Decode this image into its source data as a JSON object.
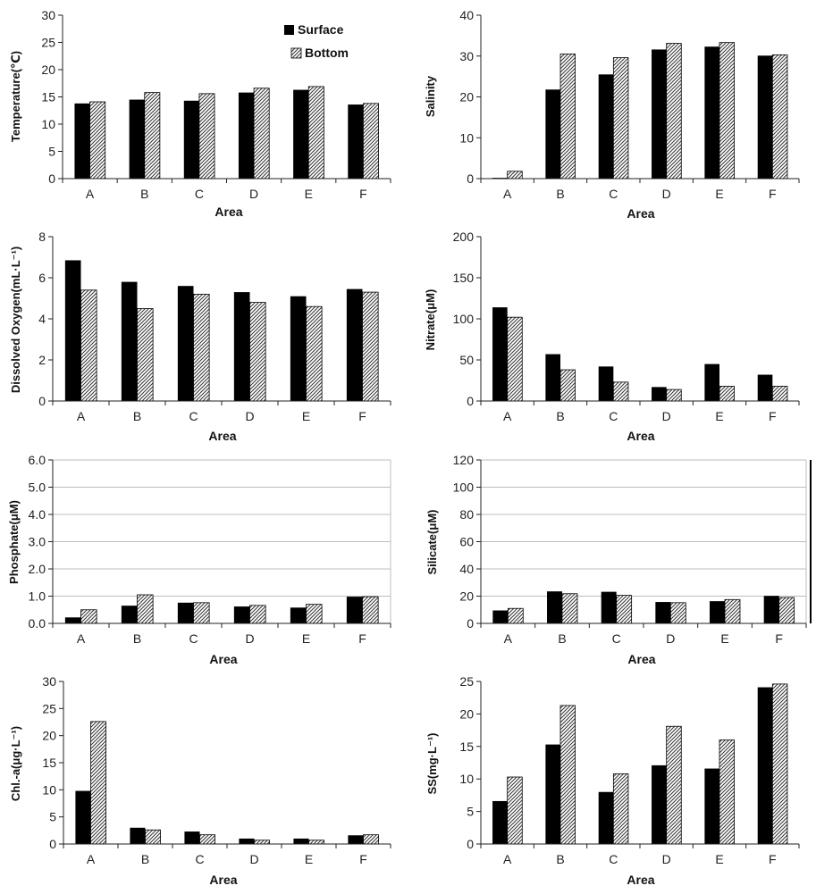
{
  "chart_data": [
    {
      "type": "bar",
      "categories": [
        "A",
        "B",
        "C",
        "D",
        "E",
        "F"
      ],
      "series": [
        {
          "name": "Surface",
          "values": [
            13.8,
            14.5,
            14.3,
            15.8,
            16.3,
            13.6
          ]
        },
        {
          "name": "Bottom",
          "values": [
            14.1,
            15.8,
            15.6,
            16.6,
            16.9,
            13.8
          ]
        }
      ],
      "xlabel": "Area",
      "ylabel": "Temperature(℃)",
      "ylim": [
        0,
        30
      ],
      "yticks": [
        "0",
        "5",
        "10",
        "15",
        "20",
        "25",
        "30"
      ],
      "grid": false,
      "legend": "top-right"
    },
    {
      "type": "bar",
      "categories": [
        "A",
        "B",
        "C",
        "D",
        "E",
        "F"
      ],
      "series": [
        {
          "name": "Surface",
          "values": [
            0.2,
            21.8,
            25.5,
            31.6,
            32.3,
            30.1
          ]
        },
        {
          "name": "Bottom",
          "values": [
            1.8,
            30.5,
            29.6,
            33.1,
            33.3,
            30.3
          ]
        }
      ],
      "xlabel": "Area",
      "ylabel": "Salinity",
      "ylim": [
        0,
        40
      ],
      "yticks": [
        "0",
        "10",
        "20",
        "30",
        "40"
      ],
      "grid": false
    },
    {
      "type": "bar",
      "categories": [
        "A",
        "B",
        "C",
        "D",
        "E",
        "F"
      ],
      "series": [
        {
          "name": "Surface",
          "values": [
            6.85,
            5.8,
            5.6,
            5.3,
            5.1,
            5.45
          ]
        },
        {
          "name": "Bottom",
          "values": [
            5.4,
            4.5,
            5.2,
            4.8,
            4.6,
            5.3
          ]
        }
      ],
      "xlabel": "Area",
      "ylabel": "Dissolved Oxygen(mL·L⁻¹)",
      "ylim": [
        0,
        8
      ],
      "yticks": [
        "0",
        "2",
        "4",
        "6",
        "8"
      ],
      "grid": false
    },
    {
      "type": "bar",
      "categories": [
        "A",
        "B",
        "C",
        "D",
        "E",
        "F"
      ],
      "series": [
        {
          "name": "Surface",
          "values": [
            114,
            57,
            42,
            17,
            45,
            32
          ]
        },
        {
          "name": "Bottom",
          "values": [
            102,
            38,
            23,
            14,
            18,
            18
          ]
        }
      ],
      "xlabel": "Area",
      "ylabel": "Nitrate(μM)",
      "ylim": [
        0,
        200
      ],
      "yticks": [
        "0",
        "50",
        "100",
        "150",
        "200"
      ],
      "grid": false
    },
    {
      "type": "bar",
      "categories": [
        "A",
        "B",
        "C",
        "D",
        "E",
        "F"
      ],
      "series": [
        {
          "name": "Surface",
          "values": [
            0.22,
            0.65,
            0.76,
            0.62,
            0.58,
            0.98
          ]
        },
        {
          "name": "Bottom",
          "values": [
            0.5,
            1.05,
            0.76,
            0.66,
            0.7,
            0.98
          ]
        }
      ],
      "xlabel": "Area",
      "ylabel": "Phosphate(μM)",
      "ylim": [
        0,
        6
      ],
      "yticks": [
        "0.0",
        "1.0",
        "2.0",
        "3.0",
        "4.0",
        "5.0",
        "6.0"
      ],
      "grid": true
    },
    {
      "type": "bar",
      "categories": [
        "A",
        "B",
        "C",
        "D",
        "E",
        "F"
      ],
      "series": [
        {
          "name": "Surface",
          "values": [
            9.5,
            23.5,
            23.2,
            15.7,
            16.3,
            20.2
          ]
        },
        {
          "name": "Bottom",
          "values": [
            11.0,
            21.8,
            20.6,
            15.2,
            17.5,
            19.0
          ]
        }
      ],
      "xlabel": "Area",
      "ylabel": "Silicate(μM)",
      "ylim": [
        0,
        120
      ],
      "yticks": [
        "0",
        "20",
        "40",
        "60",
        "80",
        "100",
        "120"
      ],
      "grid": true
    },
    {
      "type": "bar",
      "categories": [
        "A",
        "B",
        "C",
        "D",
        "E",
        "F"
      ],
      "series": [
        {
          "name": "Surface",
          "values": [
            9.8,
            3.0,
            2.3,
            1.0,
            1.0,
            1.6
          ]
        },
        {
          "name": "Bottom",
          "values": [
            22.6,
            2.6,
            1.7,
            0.7,
            0.7,
            1.7
          ]
        }
      ],
      "xlabel": "Area",
      "ylabel": "Chl.-a(μg·L⁻¹)",
      "ylim": [
        0,
        30
      ],
      "yticks": [
        "0",
        "5",
        "10",
        "15",
        "20",
        "25",
        "30"
      ],
      "grid": false
    },
    {
      "type": "bar",
      "categories": [
        "A",
        "B",
        "C",
        "D",
        "E",
        "F"
      ],
      "series": [
        {
          "name": "Surface",
          "values": [
            6.6,
            15.3,
            8.0,
            12.1,
            11.6,
            24.1
          ]
        },
        {
          "name": "Bottom",
          "values": [
            10.3,
            21.3,
            10.8,
            18.1,
            16.0,
            24.6
          ]
        }
      ],
      "xlabel": "Area",
      "ylabel": "SS(mg·L⁻¹)",
      "ylim": [
        0,
        25
      ],
      "yticks": [
        "0",
        "5",
        "10",
        "15",
        "20",
        "25"
      ],
      "grid": false
    }
  ],
  "colors": {
    "surface": "#000000",
    "bottom_hatch": "#333333",
    "axis": "#222222",
    "grid": "#bdbdbd"
  }
}
